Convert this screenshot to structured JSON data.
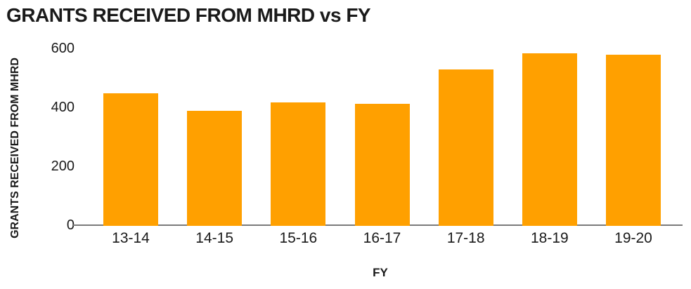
{
  "chart_data": {
    "type": "bar",
    "title": "GRANTS RECEIVED FROM MHRD vs FY",
    "xlabel": "FY",
    "ylabel": "GRANTS RECEIVED FROM MHRD",
    "categories": [
      "13-14",
      "14-15",
      "15-16",
      "16-17",
      "17-18",
      "18-19",
      "19-20"
    ],
    "values": [
      450,
      390,
      420,
      415,
      530,
      585,
      580
    ],
    "ylim": [
      0,
      600
    ],
    "yticks": [
      0,
      200,
      400,
      600
    ],
    "grid": false,
    "legend": "none",
    "colors": {
      "bar": "#FFA000",
      "axis_line": "#7A7A7A",
      "text": "#1A1A1A",
      "background": "#FFFFFF"
    }
  }
}
